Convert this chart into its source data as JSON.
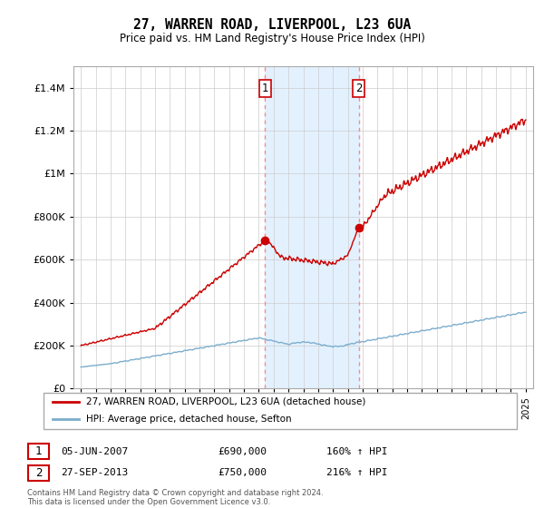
{
  "title": "27, WARREN ROAD, LIVERPOOL, L23 6UA",
  "subtitle": "Price paid vs. HM Land Registry's House Price Index (HPI)",
  "legend_line1": "27, WARREN ROAD, LIVERPOOL, L23 6UA (detached house)",
  "legend_line2": "HPI: Average price, detached house, Sefton",
  "transaction1_date": "05-JUN-2007",
  "transaction1_price": "£690,000",
  "transaction1_hpi": "160% ↑ HPI",
  "transaction2_date": "27-SEP-2013",
  "transaction2_price": "£750,000",
  "transaction2_hpi": "216% ↑ HPI",
  "footnote": "Contains HM Land Registry data © Crown copyright and database right 2024.\nThis data is licensed under the Open Government Licence v3.0.",
  "ylim": [
    0,
    1500000
  ],
  "yticks": [
    0,
    200000,
    400000,
    600000,
    800000,
    1000000,
    1200000,
    1400000
  ],
  "transaction1_x": 2007.42,
  "transaction1_y": 690000,
  "transaction2_x": 2013.74,
  "transaction2_y": 750000,
  "red_color": "#cc0000",
  "blue_color": "#7aadcc",
  "marker_region_color": "#ddeeff",
  "dashed_color": "#ff8888",
  "background_color": "#ffffff",
  "grid_color": "#cccccc",
  "xlim_left": 1994.5,
  "xlim_right": 2025.5
}
